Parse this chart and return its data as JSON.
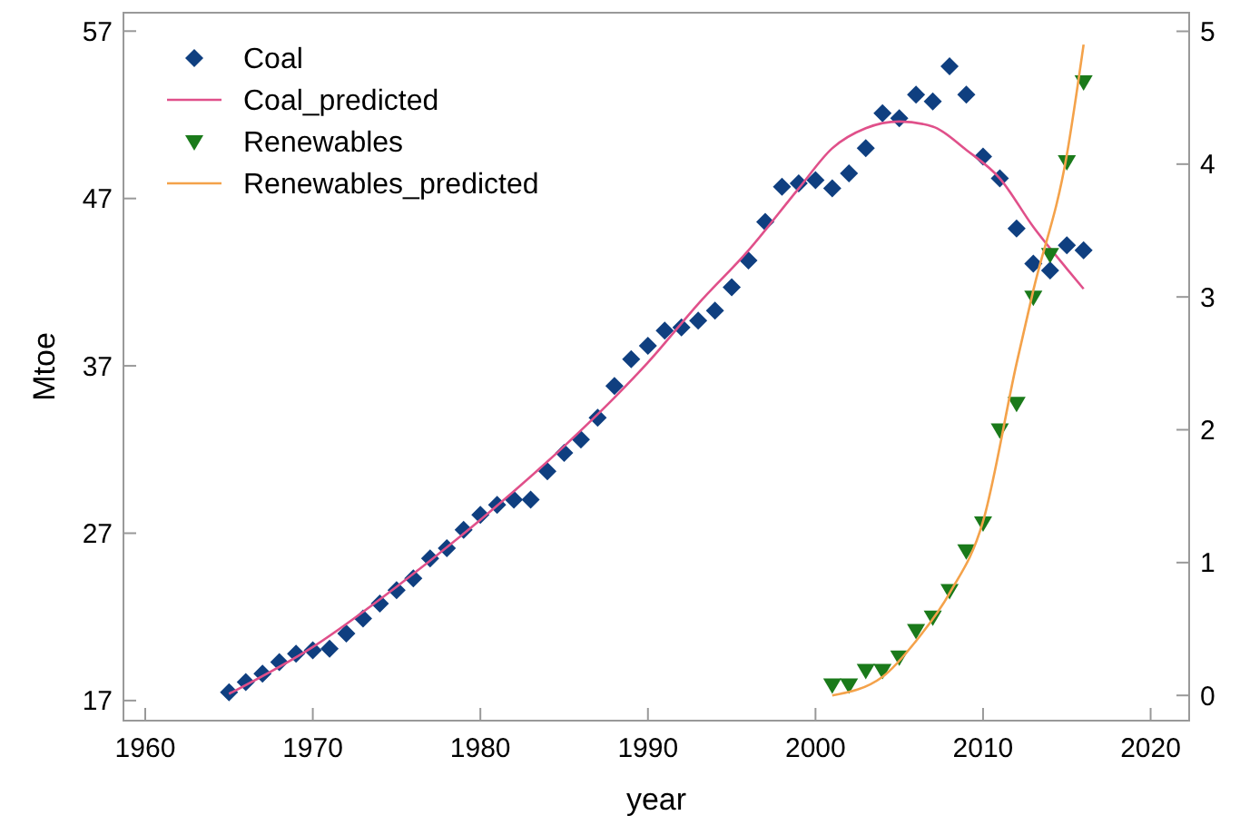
{
  "chart_data": {
    "type": "scatter",
    "xlabel": "year",
    "ylabel": "Mtoe",
    "xlim": [
      1958.7,
      2022.3
    ],
    "xticks": [
      1960,
      1970,
      1980,
      1990,
      2000,
      2010,
      2020
    ],
    "ylim": [
      15.8,
      58.1
    ],
    "yticks": [
      17,
      27,
      37,
      47,
      57
    ],
    "y2lim": [
      -0.19,
      5.14
    ],
    "y2ticks": [
      0,
      1,
      2,
      3,
      4,
      5
    ],
    "grid": false,
    "legend": "top left",
    "series": [
      {
        "name": "Coal",
        "marker": "diamond",
        "color": "#0f3f80",
        "x": [
          1965,
          1966,
          1967,
          1968,
          1969,
          1970,
          1971,
          1972,
          1973,
          1974,
          1975,
          1976,
          1977,
          1978,
          1979,
          1980,
          1981,
          1982,
          1983,
          1984,
          1985,
          1986,
          1987,
          1988,
          1989,
          1990,
          1991,
          1992,
          1993,
          1994,
          1995,
          1996,
          1997,
          1998,
          1999,
          2000,
          2001,
          2002,
          2003,
          2004,
          2005,
          2006,
          2007,
          2008,
          2009,
          2010,
          2011,
          2012,
          2013,
          2014,
          2015,
          2016
        ],
        "values": [
          17.5,
          18.1,
          18.6,
          19.3,
          19.8,
          20.0,
          20.1,
          21.0,
          21.9,
          22.8,
          23.6,
          24.3,
          25.5,
          26.1,
          27.2,
          28.1,
          28.7,
          29.0,
          29.0,
          30.7,
          31.8,
          32.6,
          33.9,
          35.8,
          37.4,
          38.2,
          39.1,
          39.3,
          39.7,
          40.3,
          41.7,
          43.3,
          45.6,
          47.7,
          47.9,
          48.1,
          47.6,
          48.5,
          50.0,
          52.1,
          51.8,
          53.2,
          52.8,
          54.9,
          53.2,
          49.5,
          48.2,
          45.2,
          43.1,
          42.7,
          44.2,
          43.9
        ]
      },
      {
        "name": "Coal_predicted",
        "type": "line",
        "color": "#e0508a",
        "x": [
          1965,
          1970,
          1975,
          1980,
          1985,
          1988,
          1990,
          1993,
          1996,
          1999,
          2001,
          2003,
          2005,
          2007,
          2009,
          2011,
          2013,
          2015,
          2016
        ],
        "values": [
          17.4,
          20.2,
          23.8,
          27.8,
          32.2,
          35.1,
          37.2,
          40.7,
          43.9,
          47.6,
          50.0,
          51.2,
          51.6,
          51.3,
          49.9,
          48.2,
          45.3,
          42.8,
          41.6
        ]
      },
      {
        "name": "Renewables",
        "marker": "triangle",
        "axis": "y2",
        "color": "#1a7a1a",
        "x": [
          2001,
          2002,
          2003,
          2004,
          2005,
          2006,
          2007,
          2008,
          2009,
          2010,
          2011,
          2012,
          2013,
          2014,
          2015,
          2016
        ],
        "values": [
          0.08,
          0.08,
          0.19,
          0.19,
          0.29,
          0.49,
          0.59,
          0.79,
          1.09,
          1.3,
          2.0,
          2.2,
          3.0,
          3.32,
          4.02,
          4.62
        ]
      },
      {
        "name": "Renewables_predicted",
        "type": "line",
        "axis": "y2",
        "color": "#f4a24a",
        "x": [
          2001,
          2004,
          2006,
          2008,
          2010,
          2012,
          2013,
          2015,
          2016
        ],
        "values": [
          0.0,
          0.14,
          0.41,
          0.77,
          1.31,
          2.5,
          3.05,
          4.07,
          4.9
        ]
      }
    ]
  }
}
